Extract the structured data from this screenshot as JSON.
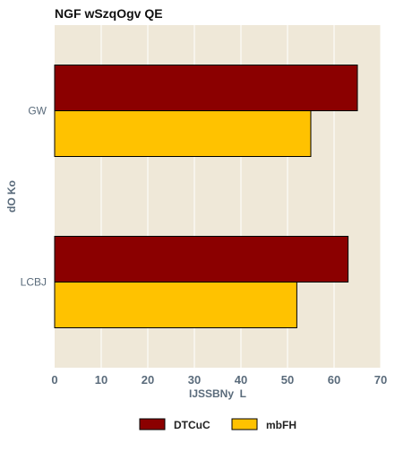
{
  "chart_data": {
    "type": "bar",
    "orientation": "horizontal",
    "title": "NGF wSzqOgv QE",
    "xlabel": "IJSSBNy  L",
    "ylabel": "dO Ko",
    "categories": [
      "GW",
      "LCBJ"
    ],
    "series": [
      {
        "name": "DTCuC",
        "values": [
          65,
          63
        ],
        "color": "#8b0000"
      },
      {
        "name": "mbFH",
        "values": [
          55,
          52
        ],
        "color": "#ffc200"
      }
    ],
    "xlim": [
      0,
      70
    ],
    "xticks": [
      "0",
      "10",
      "20",
      "30",
      "40",
      "50",
      "60",
      "70"
    ],
    "grid": true,
    "legend_position": "bottom-center",
    "plot_background": "#efe8d8"
  }
}
